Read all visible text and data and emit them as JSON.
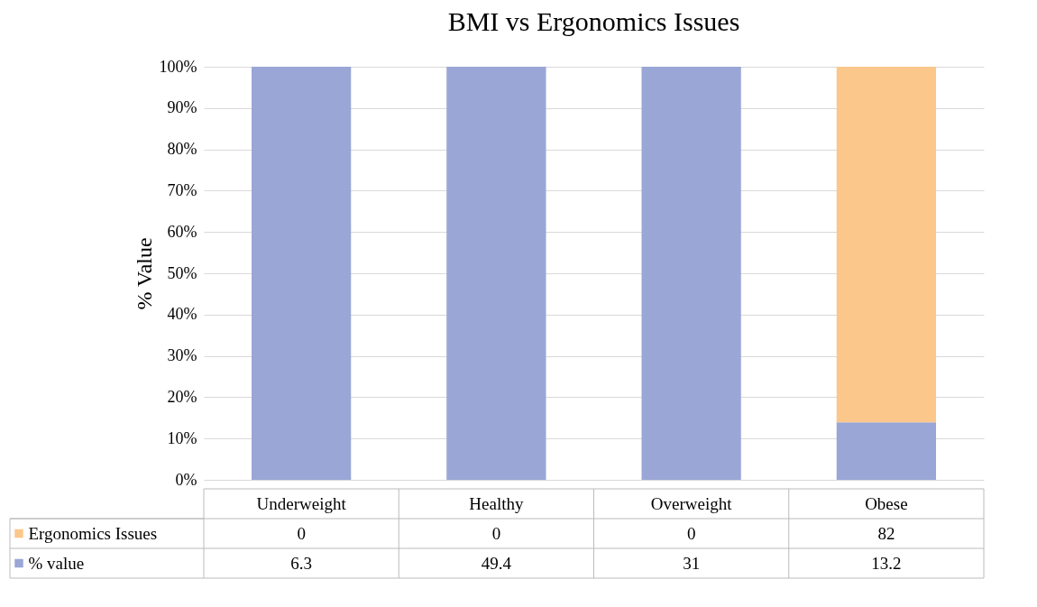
{
  "chart_data": {
    "type": "bar",
    "title": "BMI vs Ergonomics Issues",
    "ylabel": "% Value",
    "categories": [
      "Underweight",
      "Healthy",
      "Overweight",
      "Obese"
    ],
    "stacked": true,
    "series": [
      {
        "name": "% value",
        "color": "#9aa6d6",
        "values": [
          100,
          100,
          100,
          13.9
        ]
      },
      {
        "name": "Ergonomics Issues",
        "color": "#fbc78b",
        "values": [
          0,
          0,
          0,
          86.1
        ]
      }
    ],
    "annotations": [
      "0",
      "0",
      "0",
      "82",
      "6.3",
      "49.4",
      "31",
      "13.2"
    ],
    "ylim": [
      0,
      100
    ],
    "yticks": [
      {
        "value": 0,
        "label": "0%"
      },
      {
        "value": 10,
        "label": "10%"
      },
      {
        "value": 20,
        "label": "20%"
      },
      {
        "value": 30,
        "label": "30%"
      },
      {
        "value": 40,
        "label": "40%"
      },
      {
        "value": 50,
        "label": "50%"
      },
      {
        "value": 60,
        "label": "60%"
      },
      {
        "value": 70,
        "label": "70%"
      },
      {
        "value": 80,
        "label": "80%"
      },
      {
        "value": 90,
        "label": "90%"
      },
      {
        "value": 100,
        "label": "100%"
      }
    ],
    "grid": "y",
    "legend": "bottom"
  }
}
